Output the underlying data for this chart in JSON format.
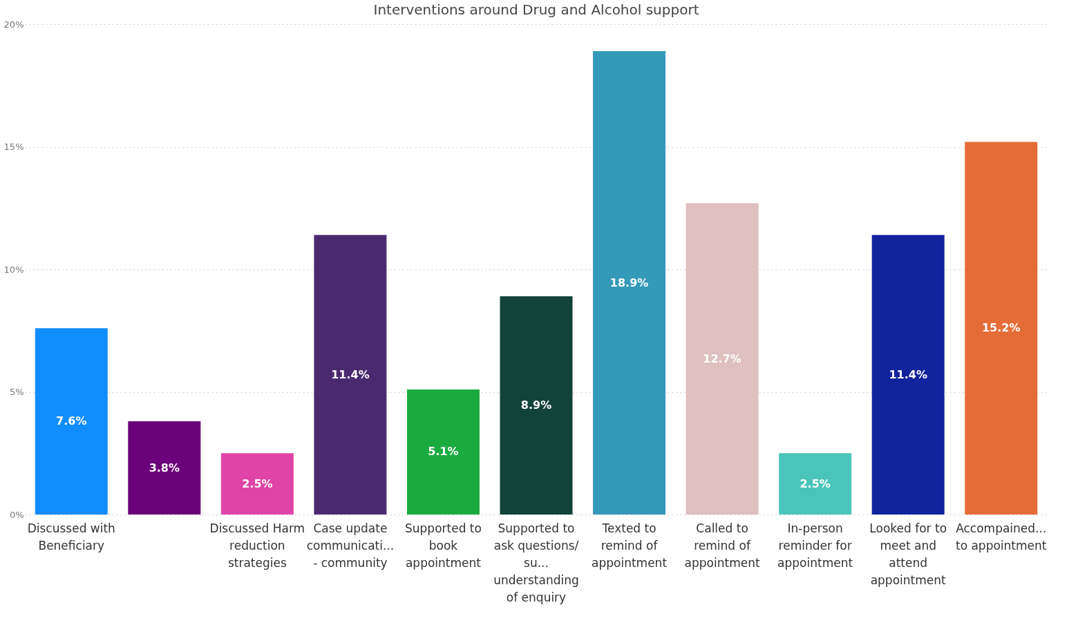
{
  "chart_data": {
    "type": "bar",
    "title": "Interventions around Drug and Alcohol support",
    "categories": [
      "Discussed with Beneficiary",
      null,
      "Discussed Harm reduction strategies",
      "Case update communicati... - community",
      "Supported to book appointment",
      "Supported to ask questions/su... understanding of enquiry",
      "Texted to remind of appointment",
      "Called to remind of appointment",
      "In-person reminder for appointment",
      "Looked for to meet and attend appointment",
      "Accompained... to appointment"
    ],
    "values": [
      7.6,
      3.8,
      2.5,
      11.4,
      5.1,
      8.9,
      18.9,
      12.7,
      2.5,
      11.4,
      15.2
    ],
    "value_labels": [
      "7.6%",
      "3.8%",
      "2.5%",
      "11.4%",
      "5.1%",
      "8.9%",
      "18.9%",
      "12.7%",
      "2.5%",
      "11.4%",
      "15.2%"
    ],
    "colors": [
      "#118dff",
      "#6b007b",
      "#e044a7",
      "#4a2a6f",
      "#1aab40",
      "#12433b",
      "#3599b8",
      "#dfbfbf",
      "#4ac5bb",
      "#12239e",
      "#e66c37"
    ],
    "ylim": [
      0,
      20
    ],
    "yticks": [
      {
        "value": 0,
        "label": "0%"
      },
      {
        "value": 5,
        "label": "5%"
      },
      {
        "value": 10,
        "label": "10%"
      },
      {
        "value": 15,
        "label": "15%"
      },
      {
        "value": 20,
        "label": "20%"
      }
    ],
    "grid": "y"
  }
}
